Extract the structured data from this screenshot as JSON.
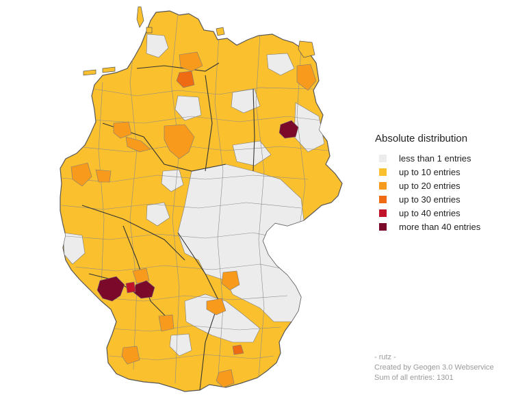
{
  "legend": {
    "title": "Absolute distribution",
    "items": [
      {
        "label": "less than 1 entries",
        "color": "#ececec"
      },
      {
        "label": "up to 10 entries",
        "color": "#fbc02d"
      },
      {
        "label": "up to 20 entries",
        "color": "#f89a1c"
      },
      {
        "label": "up to 30 entries",
        "color": "#ee6a13"
      },
      {
        "label": "up to 40 entries",
        "color": "#c0132a"
      },
      {
        "label": "more than 40 entries",
        "color": "#7b0a2a"
      }
    ]
  },
  "footer": {
    "author": "- rutz -",
    "credit": "Created by Geogen 3.0 Webservice",
    "sum": "Sum of all entries: 1301"
  }
}
